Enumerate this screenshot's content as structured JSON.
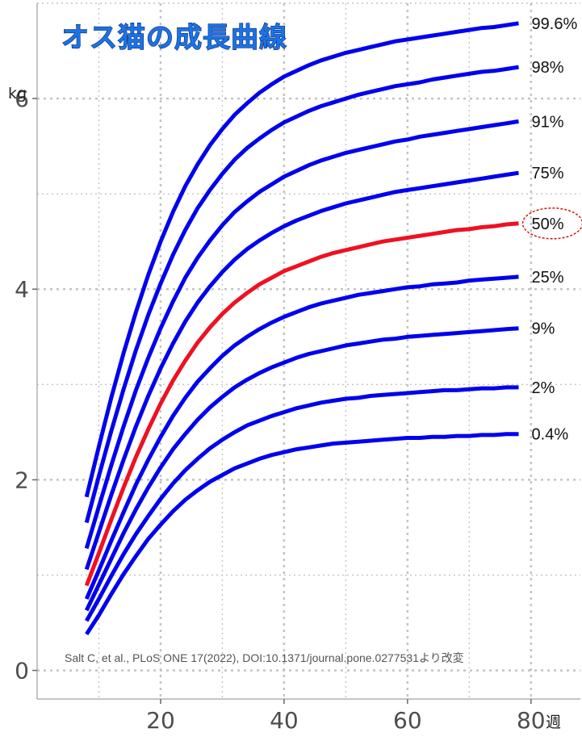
{
  "chart_data": {
    "type": "line",
    "title": "オス猫の成長曲線",
    "xlabel": "週",
    "ylabel": "kg",
    "xlim": [
      0,
      88
    ],
    "ylim": [
      -0.3,
      7.0
    ],
    "x_ticks": [
      20,
      40,
      60,
      80
    ],
    "y_ticks": [
      0,
      2,
      4,
      6
    ],
    "grid": true,
    "highlight_series": "50%",
    "source_note": "Salt C, et al., PLoS ONE 17(2022), DOI:10.1371/journal.pone.0277531より改変",
    "x": [
      8,
      10,
      12,
      14,
      16,
      18,
      20,
      22,
      24,
      26,
      28,
      30,
      32,
      34,
      36,
      38,
      40,
      42,
      44,
      46,
      48,
      50,
      52,
      54,
      56,
      58,
      60,
      62,
      64,
      66,
      68,
      70,
      72,
      74,
      76,
      78
    ],
    "series": [
      {
        "name": "99.6%",
        "values": [
          1.82,
          2.35,
          2.86,
          3.33,
          3.76,
          4.15,
          4.5,
          4.81,
          5.08,
          5.31,
          5.51,
          5.68,
          5.83,
          5.95,
          6.06,
          6.15,
          6.23,
          6.29,
          6.35,
          6.4,
          6.44,
          6.48,
          6.51,
          6.54,
          6.57,
          6.6,
          6.62,
          6.64,
          6.66,
          6.68,
          6.7,
          6.72,
          6.74,
          6.75,
          6.77,
          6.79
        ]
      },
      {
        "name": "98%",
        "values": [
          1.55,
          2.04,
          2.51,
          2.95,
          3.36,
          3.73,
          4.06,
          4.36,
          4.62,
          4.85,
          5.04,
          5.21,
          5.36,
          5.48,
          5.58,
          5.67,
          5.75,
          5.81,
          5.87,
          5.92,
          5.96,
          6.0,
          6.04,
          6.07,
          6.1,
          6.13,
          6.15,
          6.17,
          6.2,
          6.22,
          6.24,
          6.26,
          6.28,
          6.29,
          6.31,
          6.33
        ]
      },
      {
        "name": "91%",
        "values": [
          1.28,
          1.72,
          2.15,
          2.56,
          2.94,
          3.28,
          3.59,
          3.87,
          4.12,
          4.33,
          4.51,
          4.67,
          4.81,
          4.92,
          5.02,
          5.1,
          5.18,
          5.24,
          5.3,
          5.35,
          5.39,
          5.43,
          5.46,
          5.49,
          5.52,
          5.55,
          5.57,
          5.6,
          5.62,
          5.64,
          5.66,
          5.68,
          5.7,
          5.72,
          5.74,
          5.76
        ]
      },
      {
        "name": "75%",
        "values": [
          1.06,
          1.45,
          1.84,
          2.21,
          2.56,
          2.88,
          3.17,
          3.43,
          3.66,
          3.86,
          4.03,
          4.18,
          4.31,
          4.42,
          4.51,
          4.59,
          4.66,
          4.72,
          4.77,
          4.82,
          4.86,
          4.9,
          4.93,
          4.96,
          4.99,
          5.02,
          5.04,
          5.06,
          5.08,
          5.1,
          5.12,
          5.14,
          5.16,
          5.18,
          5.2,
          5.22
        ]
      },
      {
        "name": "50%",
        "values": [
          0.89,
          1.23,
          1.58,
          1.92,
          2.24,
          2.53,
          2.8,
          3.04,
          3.25,
          3.44,
          3.6,
          3.74,
          3.86,
          3.96,
          4.05,
          4.12,
          4.19,
          4.24,
          4.29,
          4.34,
          4.38,
          4.41,
          4.44,
          4.47,
          4.5,
          4.52,
          4.54,
          4.56,
          4.58,
          4.6,
          4.62,
          4.63,
          4.65,
          4.66,
          4.68,
          4.69
        ]
      },
      {
        "name": "25%",
        "values": [
          0.75,
          1.05,
          1.36,
          1.66,
          1.95,
          2.21,
          2.45,
          2.67,
          2.86,
          3.03,
          3.17,
          3.3,
          3.41,
          3.5,
          3.58,
          3.65,
          3.71,
          3.76,
          3.81,
          3.85,
          3.88,
          3.91,
          3.94,
          3.96,
          3.98,
          4.0,
          4.02,
          4.03,
          4.05,
          4.06,
          4.07,
          4.09,
          4.1,
          4.11,
          4.12,
          4.13
        ]
      },
      {
        "name": "9%",
        "values": [
          0.63,
          0.9,
          1.17,
          1.44,
          1.69,
          1.92,
          2.13,
          2.32,
          2.48,
          2.63,
          2.76,
          2.87,
          2.97,
          3.05,
          3.12,
          3.18,
          3.23,
          3.28,
          3.32,
          3.35,
          3.38,
          3.41,
          3.43,
          3.45,
          3.47,
          3.48,
          3.5,
          3.51,
          3.52,
          3.53,
          3.54,
          3.55,
          3.56,
          3.57,
          3.58,
          3.59
        ]
      },
      {
        "name": "2%",
        "values": [
          0.52,
          0.75,
          0.99,
          1.22,
          1.43,
          1.62,
          1.8,
          1.96,
          2.1,
          2.22,
          2.33,
          2.42,
          2.5,
          2.57,
          2.62,
          2.67,
          2.71,
          2.75,
          2.78,
          2.81,
          2.83,
          2.85,
          2.86,
          2.88,
          2.89,
          2.9,
          2.91,
          2.92,
          2.93,
          2.94,
          2.94,
          2.95,
          2.96,
          2.96,
          2.97,
          2.97
        ]
      },
      {
        "name": "0.4%",
        "values": [
          0.38,
          0.58,
          0.8,
          1.01,
          1.2,
          1.38,
          1.53,
          1.67,
          1.79,
          1.89,
          1.98,
          2.05,
          2.12,
          2.17,
          2.22,
          2.26,
          2.29,
          2.32,
          2.34,
          2.36,
          2.38,
          2.39,
          2.4,
          2.41,
          2.42,
          2.43,
          2.44,
          2.44,
          2.45,
          2.45,
          2.46,
          2.46,
          2.47,
          2.47,
          2.48,
          2.48
        ]
      }
    ]
  },
  "colors": {
    "series_line": "#0000ee",
    "highlight_line": "#ee1122",
    "highlight_ellipse": "#dd1111",
    "title_fill": "#1a73e8",
    "title_stroke": "#0d2a6b",
    "grid": "#c4c4c4",
    "axis": "#b0b0b0"
  }
}
